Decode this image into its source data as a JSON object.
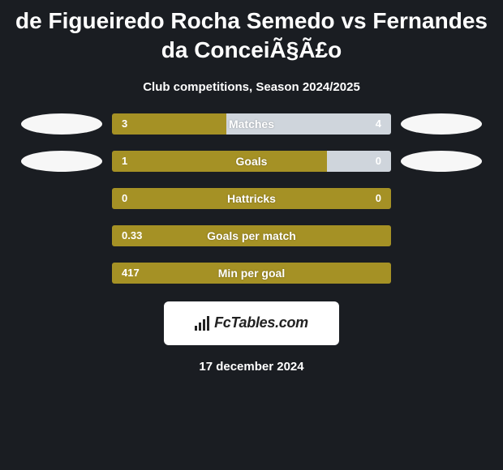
{
  "header": {
    "title": "de Figueiredo Rocha Semedo vs Fernandes da ConceiÃ§Ã£o",
    "subtitle": "Club competitions, Season 2024/2025"
  },
  "rows": [
    {
      "key": "matches",
      "label": "Matches",
      "left_value": "3",
      "right_value": "4",
      "left_pct": 41,
      "right_pct": 59,
      "left_color": "#a59125",
      "right_color": "#cfd5dc",
      "show_left_ellipse": true,
      "show_right_ellipse": true
    },
    {
      "key": "goals",
      "label": "Goals",
      "left_value": "1",
      "right_value": "0",
      "left_pct": 77,
      "right_pct": 23,
      "left_color": "#a59125",
      "right_color": "#cfd5dc",
      "show_left_ellipse": true,
      "show_right_ellipse": true
    },
    {
      "key": "hattricks",
      "label": "Hattricks",
      "left_value": "0",
      "right_value": "0",
      "left_pct": 100,
      "right_pct": 0,
      "left_color": "#a59125",
      "right_color": "#cfd5dc",
      "show_left_ellipse": false,
      "show_right_ellipse": false
    },
    {
      "key": "gpm",
      "label": "Goals per match",
      "left_value": "0.33",
      "right_value": "",
      "left_pct": 100,
      "right_pct": 0,
      "left_color": "#a59125",
      "right_color": "#cfd5dc",
      "show_left_ellipse": false,
      "show_right_ellipse": false
    },
    {
      "key": "mpg",
      "label": "Min per goal",
      "left_value": "417",
      "right_value": "",
      "left_pct": 100,
      "right_pct": 0,
      "left_color": "#a59125",
      "right_color": "#cfd5dc",
      "show_left_ellipse": false,
      "show_right_ellipse": false
    }
  ],
  "branding": {
    "site_name": "FcTables.com",
    "logo_bar_heights": [
      6,
      10,
      14,
      18
    ],
    "logo_bar_color": "#222222"
  },
  "footer": {
    "date": "17 december 2024"
  },
  "colors": {
    "background": "#1a1d22",
    "text": "#ffffff",
    "olive": "#a59125",
    "light": "#cfd5dc",
    "ellipse": "#f7f7f7"
  }
}
